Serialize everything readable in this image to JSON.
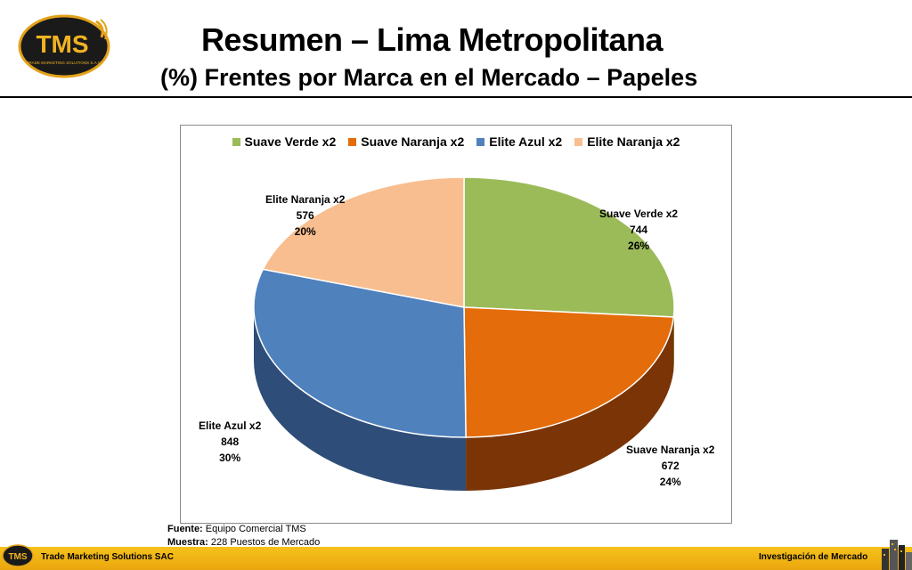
{
  "header": {
    "title": "Resumen – Lima Metropolitana",
    "subtitle": "(%) Frentes por Marca en el Mercado – Papeles",
    "logo_text": "TMS",
    "logo_tagline": "TRADE MARKETING SOLUTIONS S.A.C."
  },
  "chart_data": {
    "type": "pie",
    "categories": [
      "Suave Verde x2",
      "Suave Naranja x2",
      "Elite Azul x2",
      "Elite Naranja x2"
    ],
    "values": [
      744,
      672,
      848,
      576
    ],
    "percent_labels": [
      "26%",
      "24%",
      "30%",
      "20%"
    ],
    "value_labels": [
      "744",
      "672",
      "848",
      "576"
    ],
    "colors": [
      "#9bbb59",
      "#e46c0a",
      "#4f81bd",
      "#f8be8f"
    ],
    "side_colors": [
      "#5f7a30",
      "#7a3405",
      "#2e4d78",
      "#b07a4c"
    ],
    "legend_position": "top"
  },
  "source": {
    "fuente_label": "Fuente:",
    "fuente_value": "Equipo Comercial TMS",
    "muestra_label": "Muestra:",
    "muestra_value": "228 Puestos de Mercado"
  },
  "footer": {
    "left": "Trade Marketing Solutions SAC",
    "right": "Investigación de Mercado",
    "logo_text": "TMS"
  }
}
